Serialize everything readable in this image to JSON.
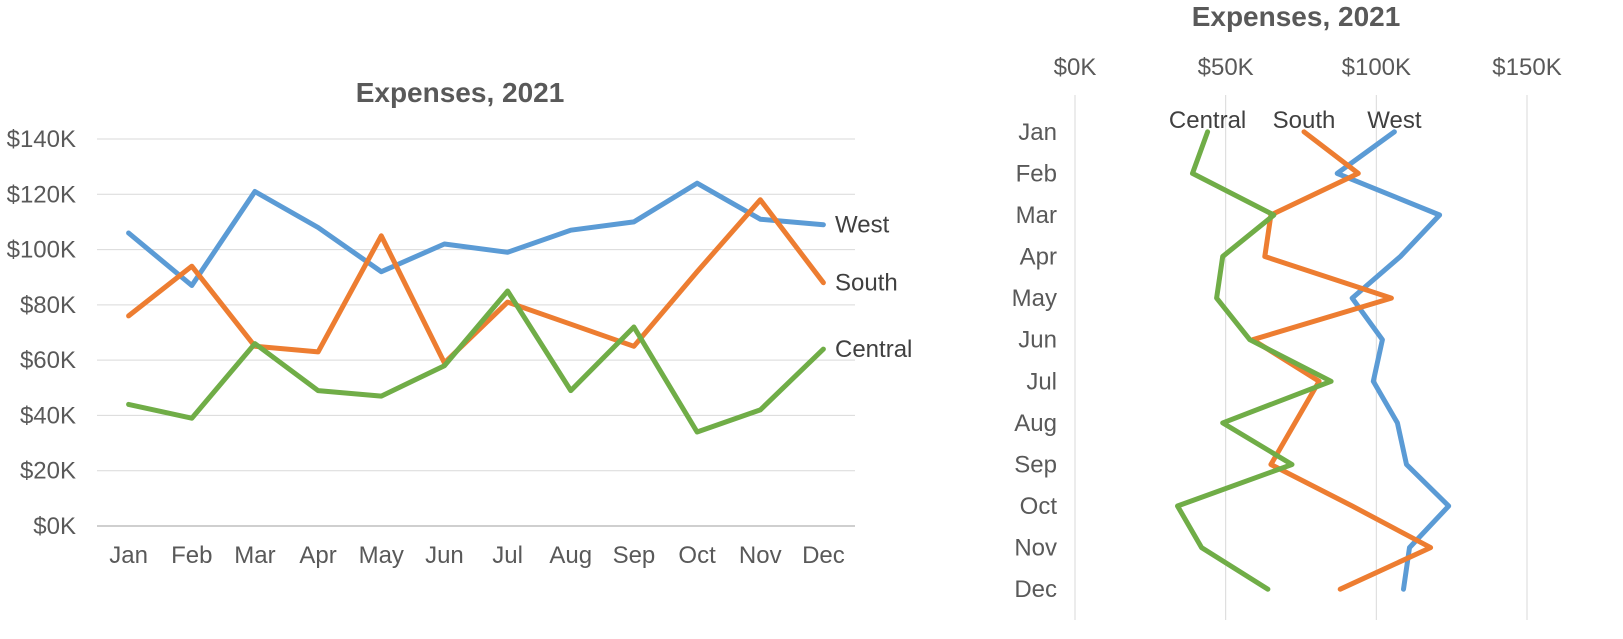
{
  "chart_data": [
    {
      "type": "line",
      "title": "Expenses, 2021",
      "categories": [
        "Jan",
        "Feb",
        "Mar",
        "Apr",
        "May",
        "Jun",
        "Jul",
        "Aug",
        "Sep",
        "Oct",
        "Nov",
        "Dec"
      ],
      "yticks": [
        "$0K",
        "$20K",
        "$40K",
        "$60K",
        "$80K",
        "$100K",
        "$120K",
        "$140K"
      ],
      "ylim": [
        0,
        140000
      ],
      "grid": true,
      "legend": "direct labels at right end of lines",
      "series": [
        {
          "name": "West",
          "color": "#5b9bd5",
          "values": [
            106000,
            87000,
            121000,
            108000,
            92000,
            102000,
            99000,
            107000,
            110000,
            124000,
            111000,
            109000
          ]
        },
        {
          "name": "South",
          "color": "#ed7d31",
          "values": [
            76000,
            94000,
            65000,
            63000,
            105000,
            59000,
            81000,
            73000,
            65000,
            92000,
            118000,
            88000
          ]
        },
        {
          "name": "Central",
          "color": "#70ad47",
          "values": [
            44000,
            39000,
            66000,
            49000,
            47000,
            58000,
            85000,
            49000,
            72000,
            34000,
            42000,
            64000
          ]
        }
      ]
    },
    {
      "type": "line",
      "orientation": "vertical",
      "title": "Expenses, 2021",
      "categories": [
        "Jan",
        "Feb",
        "Mar",
        "Apr",
        "May",
        "Jun",
        "Jul",
        "Aug",
        "Sep",
        "Oct",
        "Nov",
        "Dec"
      ],
      "xticks": [
        "$0K",
        "$50K",
        "$100K",
        "$150K"
      ],
      "xlim": [
        0,
        150000
      ],
      "grid": true,
      "legend": "direct labels at top of lines",
      "series": [
        {
          "name": "West",
          "color": "#5b9bd5",
          "values": [
            106000,
            87000,
            121000,
            108000,
            92000,
            102000,
            99000,
            107000,
            110000,
            124000,
            111000,
            109000
          ]
        },
        {
          "name": "South",
          "color": "#ed7d31",
          "values": [
            76000,
            94000,
            65000,
            63000,
            105000,
            59000,
            81000,
            73000,
            65000,
            92000,
            118000,
            88000
          ]
        },
        {
          "name": "Central",
          "color": "#70ad47",
          "values": [
            44000,
            39000,
            66000,
            49000,
            47000,
            58000,
            85000,
            49000,
            72000,
            34000,
            42000,
            64000
          ]
        }
      ]
    }
  ]
}
